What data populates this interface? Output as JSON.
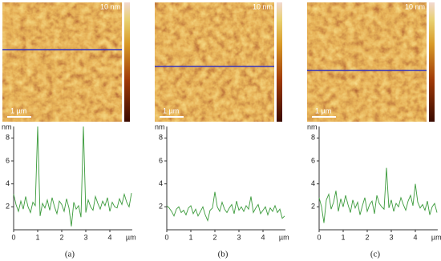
{
  "chart_data": [
    {
      "type": "line",
      "image_label": "10 nm",
      "scale_bar": "1 µm",
      "y_unit": "nm",
      "x_unit": "µm",
      "caption": "(a)",
      "xlim": [
        0,
        4.93
      ],
      "ylim": [
        0,
        9
      ],
      "xticks": [
        0,
        1,
        2,
        3,
        4
      ],
      "yticks": [
        2,
        4,
        6,
        8
      ],
      "x": [
        0,
        0.1,
        0.2,
        0.3,
        0.4,
        0.5,
        0.6,
        0.7,
        0.8,
        0.9,
        1.0,
        1.1,
        1.2,
        1.3,
        1.4,
        1.5,
        1.6,
        1.7,
        1.8,
        1.9,
        2.0,
        2.1,
        2.2,
        2.3,
        2.4,
        2.5,
        2.6,
        2.7,
        2.8,
        2.9,
        3.0,
        3.1,
        3.2,
        3.3,
        3.4,
        3.5,
        3.6,
        3.7,
        3.8,
        3.9,
        4.0,
        4.1,
        4.2,
        4.3,
        4.4,
        4.5,
        4.6,
        4.7,
        4.8,
        4.9
      ],
      "series": [
        {
          "color": "#3a9a3a",
          "values": [
            3.1,
            2.2,
            1.6,
            2.5,
            1.8,
            2.9,
            2.0,
            1.5,
            2.4,
            2.1,
            9.0,
            1.2,
            2.3,
            1.9,
            2.6,
            1.7,
            2.8,
            2.0,
            1.4,
            2.5,
            2.2,
            1.6,
            2.7,
            1.9,
            0.3,
            2.4,
            1.8,
            2.1,
            1.1,
            9.0,
            1.5,
            2.6,
            2.0,
            1.7,
            2.9,
            2.3,
            1.8,
            2.5,
            2.1,
            2.8,
            1.6,
            2.4,
            2.0,
            1.9,
            2.7,
            2.2,
            3.1,
            2.4,
            2.0,
            3.2
          ]
        }
      ]
    },
    {
      "type": "line",
      "image_label": "10 nm",
      "scale_bar": "1 µm",
      "y_unit": "nm",
      "x_unit": "µm",
      "caption": "(b)",
      "xlim": [
        0,
        4.93
      ],
      "ylim": [
        0,
        9
      ],
      "xticks": [
        0,
        1,
        2,
        3,
        4
      ],
      "yticks": [
        2,
        4,
        6,
        8
      ],
      "x": [
        0,
        0.1,
        0.2,
        0.3,
        0.4,
        0.5,
        0.6,
        0.7,
        0.8,
        0.9,
        1.0,
        1.1,
        1.2,
        1.3,
        1.4,
        1.5,
        1.6,
        1.7,
        1.8,
        1.9,
        2.0,
        2.1,
        2.2,
        2.3,
        2.4,
        2.5,
        2.6,
        2.7,
        2.8,
        2.9,
        3.0,
        3.1,
        3.2,
        3.3,
        3.4,
        3.5,
        3.6,
        3.7,
        3.8,
        3.9,
        4.0,
        4.1,
        4.2,
        4.3,
        4.4,
        4.5,
        4.6,
        4.7,
        4.8,
        4.9
      ],
      "series": [
        {
          "color": "#3a9a3a",
          "values": [
            2.1,
            1.9,
            1.6,
            1.2,
            1.8,
            2.0,
            1.5,
            1.7,
            1.3,
            1.9,
            2.1,
            1.4,
            1.8,
            1.2,
            1.6,
            2.0,
            1.3,
            0.8,
            1.7,
            1.9,
            3.3,
            2.0,
            1.6,
            2.4,
            1.8,
            1.5,
            1.9,
            2.2,
            1.4,
            2.5,
            1.7,
            2.0,
            1.6,
            2.1,
            1.8,
            2.9,
            1.5,
            1.9,
            2.2,
            1.4,
            1.7,
            2.0,
            1.3,
            1.9,
            1.6,
            2.1,
            1.5,
            1.8,
            1.0,
            1.2
          ]
        }
      ]
    },
    {
      "type": "line",
      "image_label": "10 nm",
      "scale_bar": "1 µm",
      "y_unit": "nm",
      "x_unit": "µm",
      "caption": "(c)",
      "xlim": [
        0,
        4.93
      ],
      "ylim": [
        0,
        9
      ],
      "xticks": [
        0,
        1,
        2,
        3,
        4
      ],
      "yticks": [
        2,
        4,
        6,
        8
      ],
      "x": [
        0,
        0.1,
        0.2,
        0.3,
        0.4,
        0.5,
        0.6,
        0.7,
        0.8,
        0.9,
        1.0,
        1.1,
        1.2,
        1.3,
        1.4,
        1.5,
        1.6,
        1.7,
        1.8,
        1.9,
        2.0,
        2.1,
        2.2,
        2.3,
        2.4,
        2.5,
        2.6,
        2.7,
        2.8,
        2.9,
        3.0,
        3.1,
        3.2,
        3.3,
        3.4,
        3.5,
        3.6,
        3.7,
        3.8,
        3.9,
        4.0,
        4.1,
        4.2,
        4.3,
        4.4,
        4.5,
        4.6,
        4.7,
        4.8,
        4.9
      ],
      "series": [
        {
          "color": "#3a9a3a",
          "values": [
            2.8,
            2.0,
            0.6,
            2.6,
            3.1,
            1.8,
            2.4,
            3.4,
            1.6,
            2.7,
            2.0,
            3.0,
            2.2,
            1.5,
            2.6,
            1.9,
            2.4,
            1.3,
            2.1,
            2.8,
            1.6,
            2.2,
            2.5,
            1.4,
            3.0,
            2.3,
            2.0,
            1.8,
            5.4,
            1.9,
            2.6,
            1.6,
            2.3,
            2.0,
            2.8,
            2.2,
            1.7,
            2.5,
            3.0,
            2.1,
            4.0,
            2.4,
            1.9,
            2.2,
            1.7,
            2.5,
            1.3,
            2.0,
            2.3,
            1.5
          ]
        }
      ]
    }
  ]
}
